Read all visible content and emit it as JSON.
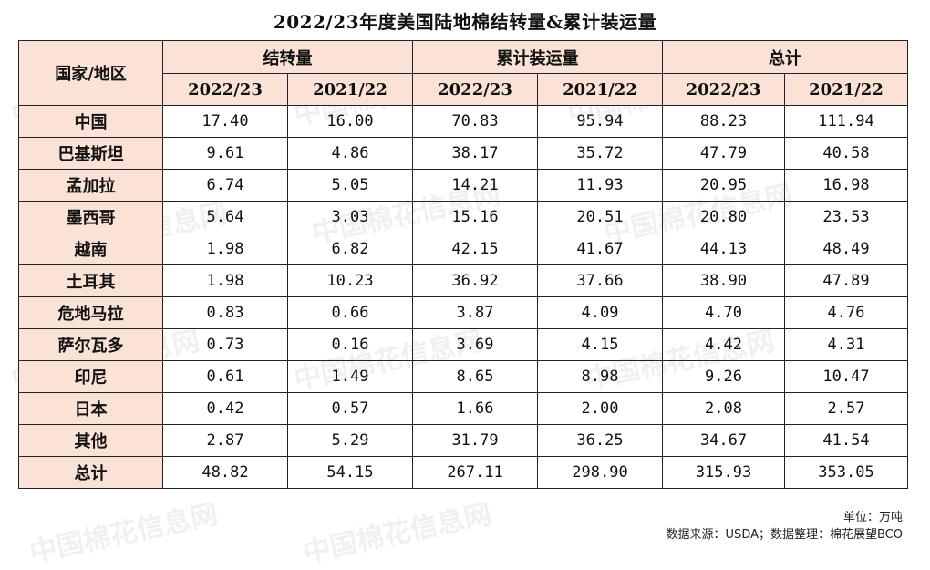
{
  "title": "2022/23年度美国陆地棉结转量&累计装运量",
  "table": {
    "corner": "国家/地区",
    "groups": [
      "结转量",
      "累计装运量",
      "总计"
    ],
    "years": [
      "2022/23",
      "2021/22"
    ],
    "rows": [
      {
        "label": "中国",
        "values": [
          "17.40",
          "16.00",
          "70.83",
          "95.94",
          "88.23",
          "111.94"
        ]
      },
      {
        "label": "巴基斯坦",
        "values": [
          "9.61",
          "4.86",
          "38.17",
          "35.72",
          "47.79",
          "40.58"
        ]
      },
      {
        "label": "孟加拉",
        "values": [
          "6.74",
          "5.05",
          "14.21",
          "11.93",
          "20.95",
          "16.98"
        ]
      },
      {
        "label": "墨西哥",
        "values": [
          "5.64",
          "3.03",
          "15.16",
          "20.51",
          "20.80",
          "23.53"
        ]
      },
      {
        "label": "越南",
        "values": [
          "1.98",
          "6.82",
          "42.15",
          "41.67",
          "44.13",
          "48.49"
        ]
      },
      {
        "label": "土耳其",
        "values": [
          "1.98",
          "10.23",
          "36.92",
          "37.66",
          "38.90",
          "47.89"
        ]
      },
      {
        "label": "危地马拉",
        "values": [
          "0.83",
          "0.66",
          "3.87",
          "4.09",
          "4.70",
          "4.76"
        ]
      },
      {
        "label": "萨尔瓦多",
        "values": [
          "0.73",
          "0.16",
          "3.69",
          "4.15",
          "4.42",
          "4.31"
        ]
      },
      {
        "label": "印尼",
        "values": [
          "0.61",
          "1.49",
          "8.65",
          "8.98",
          "9.26",
          "10.47"
        ]
      },
      {
        "label": "日本",
        "values": [
          "0.42",
          "0.57",
          "1.66",
          "2.00",
          "2.08",
          "2.57"
        ]
      },
      {
        "label": "其他",
        "values": [
          "2.87",
          "5.29",
          "31.79",
          "36.25",
          "34.67",
          "41.54"
        ]
      },
      {
        "label": "总计",
        "values": [
          "48.82",
          "54.15",
          "267.11",
          "298.90",
          "315.93",
          "353.05"
        ]
      }
    ]
  },
  "footer": {
    "unit": "单位：万吨",
    "source": "数据来源：USDA；数据整理：棉花展望BCO"
  },
  "watermark": "中国棉花信息网"
}
